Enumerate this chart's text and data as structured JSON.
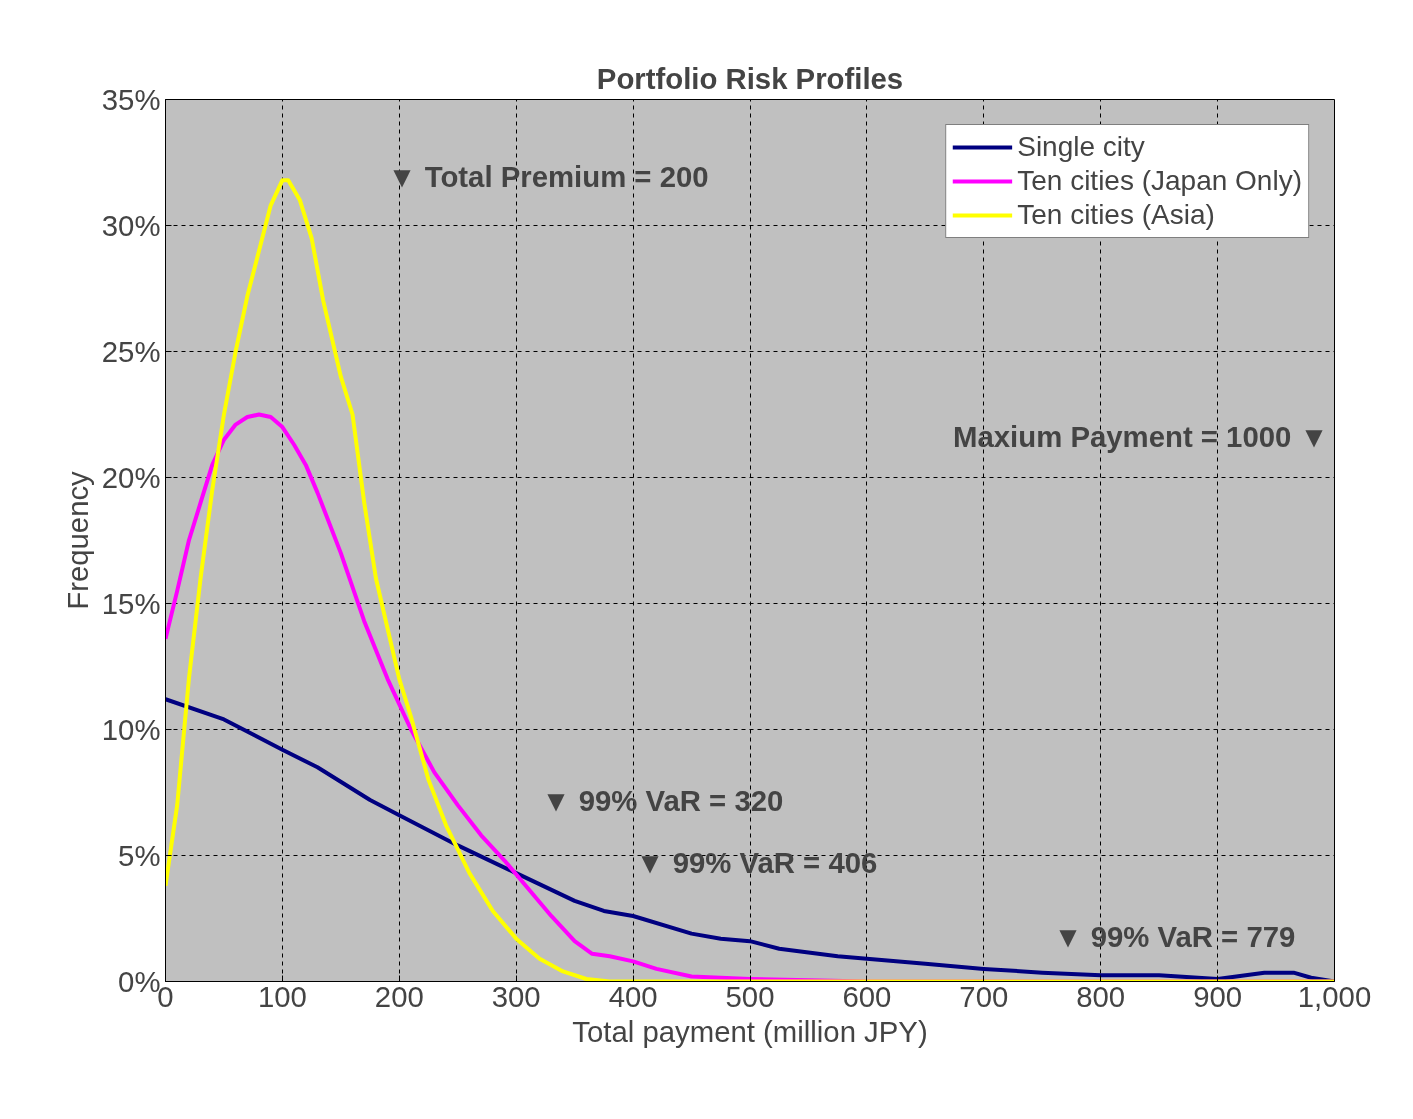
{
  "chart_data": {
    "type": "line",
    "title": "Portfolio Risk Profiles",
    "xlabel": "Total payment (million JPY)",
    "ylabel": "Frequency",
    "xlim": [
      0,
      1000
    ],
    "ylim": [
      0,
      35
    ],
    "xticks": [
      0,
      100,
      200,
      300,
      400,
      500,
      600,
      700,
      800,
      900,
      {
        "value": 1000,
        "label": "1,000"
      }
    ],
    "yticks": [
      {
        "value": 0,
        "label": "0%"
      },
      {
        "value": 5,
        "label": "5%"
      },
      {
        "value": 10,
        "label": "10%"
      },
      {
        "value": 15,
        "label": "15%"
      },
      {
        "value": 20,
        "label": "20%"
      },
      {
        "value": 25,
        "label": "25%"
      },
      {
        "value": 30,
        "label": "30%"
      },
      {
        "value": 35,
        "label": "35%"
      }
    ],
    "grid": true,
    "legend": "top right",
    "marker": "none",
    "line_style": "solid",
    "series": [
      {
        "name": "Single city",
        "color": "#000080",
        "x": [
          0,
          50,
          100,
          130,
          175,
          200,
          250,
          300,
          350,
          375,
          400,
          450,
          475,
          500,
          525,
          575,
          600,
          650,
          700,
          750,
          800,
          850,
          900,
          940,
          965,
          980,
          1000
        ],
        "values": [
          11.2,
          10.4,
          9.2,
          8.5,
          7.2,
          6.6,
          5.4,
          4.3,
          3.2,
          2.8,
          2.6,
          1.9,
          1.7,
          1.6,
          1.3,
          1.0,
          0.9,
          0.7,
          0.5,
          0.35,
          0.25,
          0.25,
          0.1,
          0.35,
          0.35,
          0.15,
          0.0
        ]
      },
      {
        "name": "Ten cities (Japan Only)",
        "color": "#ff00ff",
        "x": [
          0,
          10,
          20,
          30,
          40,
          50,
          60,
          70,
          80,
          90,
          100,
          110,
          120,
          130,
          150,
          170,
          190,
          210,
          230,
          250,
          270,
          290,
          310,
          330,
          350,
          365,
          380,
          400,
          420,
          450,
          500,
          550,
          600,
          1000
        ],
        "values": [
          13.6,
          15.5,
          17.5,
          19,
          20.5,
          21.5,
          22.1,
          22.4,
          22.5,
          22.4,
          22,
          21.3,
          20.5,
          19.4,
          17,
          14.3,
          12,
          10,
          8.3,
          7,
          5.8,
          4.8,
          3.7,
          2.6,
          1.6,
          1.1,
          1.0,
          0.8,
          0.5,
          0.2,
          0.1,
          0.05,
          0,
          0
        ]
      },
      {
        "name": "Ten cities (Asia)",
        "color": "#ffff00",
        "x": [
          0,
          10,
          20,
          30,
          40,
          50,
          60,
          70,
          80,
          90,
          100,
          105,
          115,
          125,
          135,
          150,
          160,
          170,
          180,
          190,
          200,
          210,
          225,
          240,
          260,
          280,
          300,
          320,
          340,
          360,
          380,
          1000
        ],
        "values": [
          3.8,
          7,
          12,
          16,
          19.5,
          22.5,
          25,
          27.2,
          29,
          30.8,
          31.8,
          31.8,
          31,
          29.5,
          27,
          24,
          22.5,
          19,
          16,
          14,
          12,
          10.5,
          8,
          6.2,
          4.3,
          2.8,
          1.7,
          0.9,
          0.4,
          0.1,
          0,
          0
        ]
      }
    ],
    "annotations": [
      "▼ Total Premium = 200",
      "Maxium Payment = 1000 ▼",
      "▼ 99% VaR = 320",
      "▼ 99% VaR = 406",
      "▼ 99% VaR = 779"
    ]
  }
}
